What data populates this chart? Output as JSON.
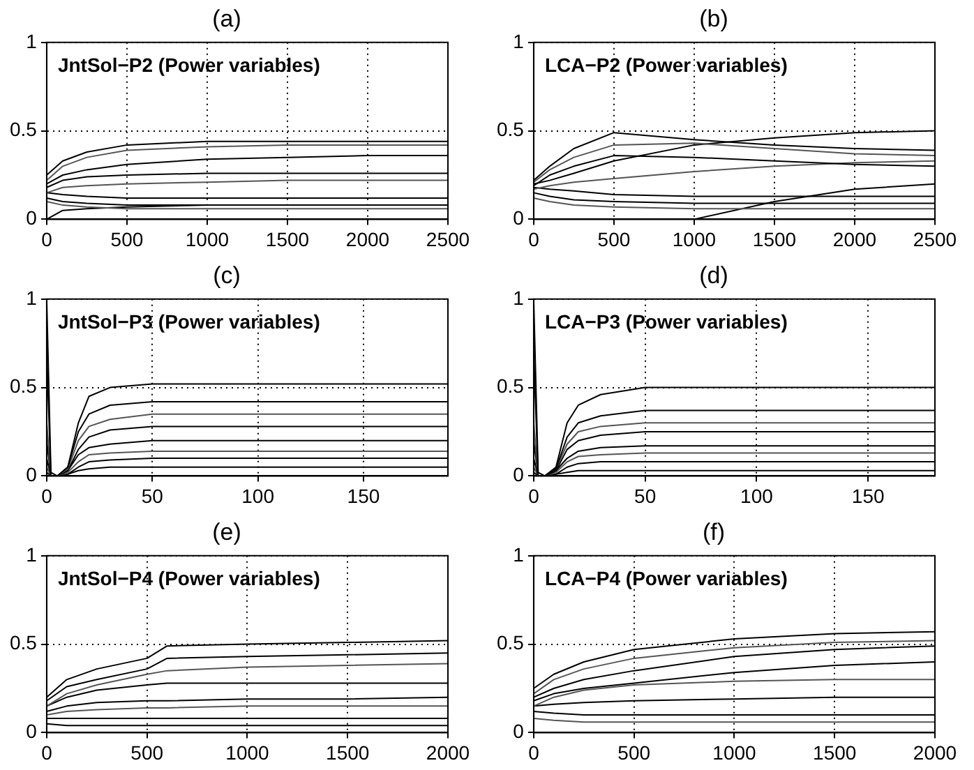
{
  "chart_data": [
    {
      "type": "line",
      "title": "(a)",
      "annotations": [
        "JntSol−P2 (Power variables)"
      ],
      "x": [
        0,
        100,
        250,
        500,
        1000,
        1500,
        2000,
        2500
      ],
      "xlim": [
        0,
        2500
      ],
      "xticks": [
        0,
        500,
        1000,
        1500,
        2000,
        2500
      ],
      "ylim": [
        0,
        1
      ],
      "yticks": [
        0,
        0.5,
        1
      ],
      "grid": true,
      "legend": false,
      "marker": "none",
      "line_style": "solid",
      "series": [
        {
          "color": "#000000",
          "values": [
            0.25,
            0.33,
            0.38,
            0.42,
            0.44,
            0.44,
            0.44,
            0.44
          ]
        },
        {
          "color": "#555555",
          "values": [
            0.22,
            0.3,
            0.35,
            0.39,
            0.41,
            0.42,
            0.42,
            0.42
          ]
        },
        {
          "color": "#000000",
          "values": [
            0.2,
            0.25,
            0.28,
            0.31,
            0.34,
            0.35,
            0.36,
            0.36
          ]
        },
        {
          "color": "#000000",
          "values": [
            0.18,
            0.22,
            0.24,
            0.25,
            0.26,
            0.26,
            0.26,
            0.26
          ]
        },
        {
          "color": "#555555",
          "values": [
            0.15,
            0.18,
            0.19,
            0.2,
            0.21,
            0.22,
            0.22,
            0.22
          ]
        },
        {
          "color": "#000000",
          "values": [
            0.15,
            0.14,
            0.13,
            0.12,
            0.12,
            0.12,
            0.12,
            0.12
          ]
        },
        {
          "color": "#000000",
          "values": [
            0.12,
            0.1,
            0.09,
            0.08,
            0.08,
            0.08,
            0.08,
            0.08
          ]
        },
        {
          "color": "#555555",
          "values": [
            0.1,
            0.08,
            0.07,
            0.06,
            0.06,
            0.06,
            0.06,
            0.06
          ]
        },
        {
          "color": "#000000",
          "values": [
            0,
            0.05,
            0.06,
            0.07,
            0.08,
            0.08,
            0.08,
            0.08
          ]
        }
      ]
    },
    {
      "type": "line",
      "title": "(b)",
      "annotations": [
        "LCA−P2 (Power variables)"
      ],
      "x": [
        0,
        100,
        250,
        500,
        1000,
        1500,
        2000,
        2500
      ],
      "xlim": [
        0,
        2500
      ],
      "xticks": [
        0,
        500,
        1000,
        1500,
        2000,
        2500
      ],
      "ylim": [
        0,
        1
      ],
      "yticks": [
        0,
        0.5,
        1
      ],
      "grid": true,
      "legend": false,
      "marker": "none",
      "line_style": "solid",
      "series": [
        {
          "color": "#000000",
          "values": [
            0.22,
            0.3,
            0.4,
            0.49,
            0.45,
            0.42,
            0.4,
            0.39
          ]
        },
        {
          "color": "#555555",
          "values": [
            0.21,
            0.28,
            0.35,
            0.42,
            0.43,
            0.4,
            0.37,
            0.36
          ]
        },
        {
          "color": "#000000",
          "values": [
            0.2,
            0.22,
            0.26,
            0.33,
            0.42,
            0.46,
            0.49,
            0.5
          ]
        },
        {
          "color": "#000000",
          "values": [
            0.19,
            0.25,
            0.3,
            0.36,
            0.35,
            0.33,
            0.31,
            0.3
          ]
        },
        {
          "color": "#555555",
          "values": [
            0.17,
            0.19,
            0.21,
            0.23,
            0.27,
            0.3,
            0.32,
            0.33
          ]
        },
        {
          "color": "#000000",
          "values": [
            0.18,
            0.17,
            0.16,
            0.14,
            0.13,
            0.13,
            0.13,
            0.13
          ]
        },
        {
          "color": "#000000",
          "values": [
            0.15,
            0.13,
            0.11,
            0.1,
            0.09,
            0.09,
            0.09,
            0.09
          ]
        },
        {
          "color": "#555555",
          "values": [
            0.12,
            0.1,
            0.08,
            0.07,
            0.06,
            0.06,
            0.06,
            0.06
          ]
        },
        {
          "color": "#000000",
          "values": [
            null,
            null,
            null,
            null,
            0,
            0.1,
            0.17,
            0.2
          ]
        }
      ]
    },
    {
      "type": "line",
      "title": "(c)",
      "annotations": [
        "JntSol−P3 (Power variables)"
      ],
      "x": [
        0,
        2,
        5,
        10,
        15,
        20,
        30,
        50,
        100,
        190
      ],
      "xlim": [
        0,
        190
      ],
      "xticks": [
        0,
        50,
        100,
        150
      ],
      "ylim": [
        0,
        1
      ],
      "yticks": [
        0,
        0.5,
        1
      ],
      "grid": true,
      "legend": false,
      "marker": "none",
      "line_style": "solid",
      "series": [
        {
          "color": "#000000",
          "values": [
            1,
            0.02,
            0,
            0.05,
            0.3,
            0.45,
            0.5,
            0.52,
            0.52,
            0.52
          ]
        },
        {
          "color": "#000000",
          "values": [
            0.7,
            0,
            0,
            0.05,
            0.25,
            0.35,
            0.4,
            0.42,
            0.42,
            0.42
          ]
        },
        {
          "color": "#555555",
          "values": [
            0.3,
            0,
            0,
            0.04,
            0.2,
            0.28,
            0.32,
            0.35,
            0.35,
            0.35
          ]
        },
        {
          "color": "#000000",
          "values": [
            0.2,
            0,
            0,
            0.03,
            0.15,
            0.22,
            0.26,
            0.28,
            0.28,
            0.28
          ]
        },
        {
          "color": "#000000",
          "values": [
            0.1,
            0,
            0,
            0.03,
            0.12,
            0.16,
            0.18,
            0.2,
            0.2,
            0.2
          ]
        },
        {
          "color": "#555555",
          "values": [
            0.05,
            0,
            0,
            0.02,
            0.08,
            0.12,
            0.13,
            0.14,
            0.14,
            0.14
          ]
        },
        {
          "color": "#000000",
          "values": [
            0.02,
            0,
            0,
            0.01,
            0.05,
            0.08,
            0.09,
            0.1,
            0.1,
            0.1
          ]
        },
        {
          "color": "#000000",
          "values": [
            0,
            0,
            0,
            0.01,
            0.03,
            0.04,
            0.05,
            0.05,
            0.05,
            0.05
          ]
        }
      ]
    },
    {
      "type": "line",
      "title": "(d)",
      "annotations": [
        "LCA−P3 (Power variables)"
      ],
      "x": [
        0,
        2,
        5,
        10,
        15,
        20,
        30,
        50,
        100,
        180
      ],
      "xlim": [
        0,
        180
      ],
      "xticks": [
        0,
        50,
        100,
        150
      ],
      "ylim": [
        0,
        1
      ],
      "yticks": [
        0,
        0.5,
        1
      ],
      "grid": true,
      "legend": false,
      "marker": "none",
      "line_style": "solid",
      "series": [
        {
          "color": "#000000",
          "values": [
            1,
            0.02,
            0,
            0.05,
            0.3,
            0.4,
            0.46,
            0.5,
            0.5,
            0.5
          ]
        },
        {
          "color": "#000000",
          "values": [
            0.7,
            0,
            0,
            0.04,
            0.22,
            0.3,
            0.34,
            0.37,
            0.37,
            0.37
          ]
        },
        {
          "color": "#555555",
          "values": [
            0.3,
            0,
            0,
            0.04,
            0.18,
            0.25,
            0.28,
            0.3,
            0.3,
            0.3
          ]
        },
        {
          "color": "#000000",
          "values": [
            0.2,
            0,
            0,
            0.03,
            0.15,
            0.2,
            0.23,
            0.25,
            0.25,
            0.25
          ]
        },
        {
          "color": "#000000",
          "values": [
            0.1,
            0,
            0,
            0.03,
            0.1,
            0.14,
            0.16,
            0.17,
            0.17,
            0.17
          ]
        },
        {
          "color": "#555555",
          "values": [
            0.05,
            0,
            0,
            0.02,
            0.08,
            0.11,
            0.12,
            0.13,
            0.13,
            0.13
          ]
        },
        {
          "color": "#000000",
          "values": [
            0.02,
            0,
            0,
            0.01,
            0.05,
            0.07,
            0.08,
            0.08,
            0.08,
            0.08
          ]
        },
        {
          "color": "#000000",
          "values": [
            0,
            0,
            0,
            0.01,
            0.02,
            0.03,
            0.03,
            0.03,
            0.03,
            0.03
          ]
        }
      ]
    },
    {
      "type": "line",
      "title": "(e)",
      "annotations": [
        "JntSol−P4 (Power variables)"
      ],
      "x": [
        0,
        100,
        250,
        500,
        600,
        1000,
        1500,
        2000
      ],
      "xlim": [
        0,
        2000
      ],
      "xticks": [
        0,
        500,
        1000,
        1500,
        2000
      ],
      "ylim": [
        0,
        1
      ],
      "yticks": [
        0,
        0.5,
        1
      ],
      "grid": true,
      "legend": false,
      "marker": "none",
      "line_style": "solid",
      "series": [
        {
          "color": "#000000",
          "values": [
            0.2,
            0.3,
            0.36,
            0.42,
            0.49,
            0.5,
            0.51,
            0.52
          ]
        },
        {
          "color": "#000000",
          "values": [
            0.18,
            0.26,
            0.3,
            0.36,
            0.42,
            0.43,
            0.44,
            0.45
          ]
        },
        {
          "color": "#555555",
          "values": [
            0.15,
            0.22,
            0.27,
            0.33,
            0.35,
            0.37,
            0.38,
            0.39
          ]
        },
        {
          "color": "#000000",
          "values": [
            0.15,
            0.2,
            0.24,
            0.27,
            0.28,
            0.28,
            0.28,
            0.28
          ]
        },
        {
          "color": "#000000",
          "values": [
            0.12,
            0.15,
            0.17,
            0.18,
            0.18,
            0.19,
            0.19,
            0.2
          ]
        },
        {
          "color": "#555555",
          "values": [
            0.1,
            0.12,
            0.13,
            0.14,
            0.14,
            0.15,
            0.15,
            0.15
          ]
        },
        {
          "color": "#000000",
          "values": [
            0.08,
            0.08,
            0.08,
            0.08,
            0.08,
            0.08,
            0.08,
            0.08
          ]
        },
        {
          "color": "#000000",
          "values": [
            0.05,
            0.04,
            0.04,
            0.04,
            0.04,
            0.04,
            0.04,
            0.04
          ]
        }
      ]
    },
    {
      "type": "line",
      "title": "(f)",
      "annotations": [
        "LCA−P4 (Power variables)"
      ],
      "x": [
        0,
        100,
        250,
        500,
        1000,
        1500,
        2000
      ],
      "xlim": [
        0,
        2000
      ],
      "xticks": [
        0,
        500,
        1000,
        1500,
        2000
      ],
      "ylim": [
        0,
        1
      ],
      "yticks": [
        0,
        0.5,
        1
      ],
      "grid": true,
      "legend": false,
      "marker": "none",
      "line_style": "solid",
      "series": [
        {
          "color": "#000000",
          "values": [
            0.25,
            0.33,
            0.4,
            0.47,
            0.53,
            0.56,
            0.57
          ]
        },
        {
          "color": "#555555",
          "values": [
            0.22,
            0.3,
            0.36,
            0.42,
            0.48,
            0.51,
            0.52
          ]
        },
        {
          "color": "#000000",
          "values": [
            0.2,
            0.25,
            0.3,
            0.35,
            0.43,
            0.47,
            0.49
          ]
        },
        {
          "color": "#000000",
          "values": [
            0.18,
            0.22,
            0.25,
            0.28,
            0.34,
            0.38,
            0.4
          ]
        },
        {
          "color": "#555555",
          "values": [
            0.15,
            0.2,
            0.24,
            0.27,
            0.29,
            0.3,
            0.3
          ]
        },
        {
          "color": "#000000",
          "values": [
            0.15,
            0.16,
            0.17,
            0.18,
            0.19,
            0.2,
            0.2
          ]
        },
        {
          "color": "#000000",
          "values": [
            0.12,
            0.11,
            0.1,
            0.1,
            0.1,
            0.1,
            0.1
          ]
        },
        {
          "color": "#555555",
          "values": [
            0.08,
            0.07,
            0.06,
            0.06,
            0.06,
            0.06,
            0.06
          ]
        }
      ]
    }
  ]
}
